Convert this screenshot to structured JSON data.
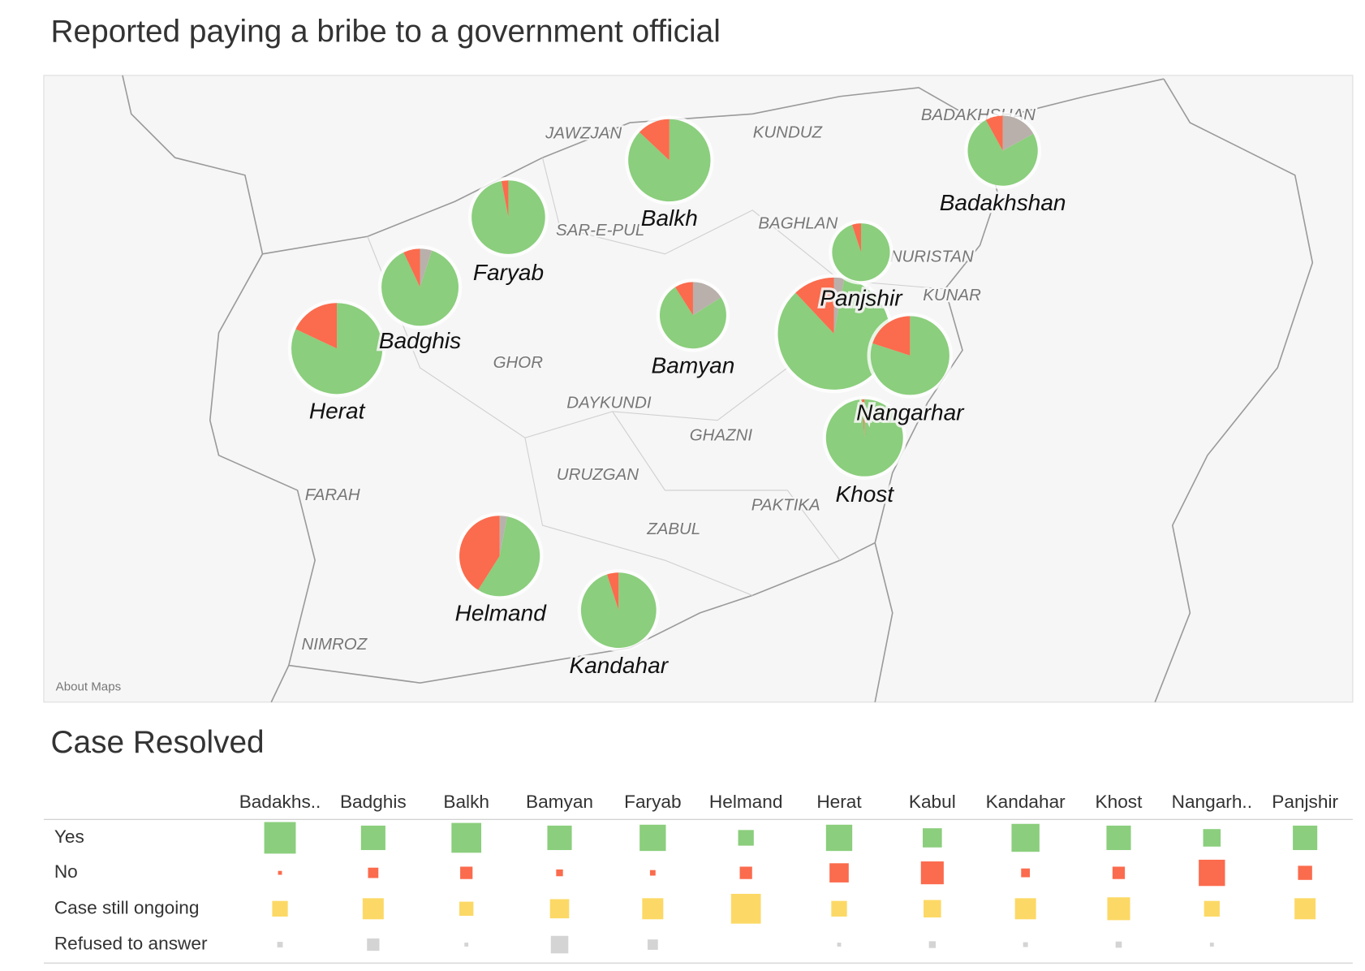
{
  "chart_data": [
    {
      "type": "pie-map",
      "title": "Reported paying a bribe to a government official",
      "categories": [
        "Badakhshan",
        "Balkh",
        "Faryab",
        "Badghis",
        "Herat",
        "Bamyan",
        "Panjshir",
        null,
        "Nangarhar",
        "Khost",
        "Helmand",
        "Kandahar"
      ],
      "series": [
        {
          "color": "#b9b0ab",
          "values": [
            17,
            0,
            0,
            5,
            0,
            16,
            0,
            3,
            0,
            0,
            3,
            0
          ]
        },
        {
          "color": "#8bce7d",
          "values": [
            75,
            87,
            97,
            88,
            82,
            75,
            95,
            85,
            80,
            99,
            56,
            95
          ]
        },
        {
          "color": "#fb6b4d",
          "values": [
            8,
            13,
            3,
            7,
            18,
            9,
            5,
            12,
            20,
            1,
            41,
            5
          ]
        }
      ],
      "annotations": [
        "JAWZJAN",
        "KUNDUZ",
        "BADAKHSHAN",
        "SAR-E-PUL",
        "BAGHLAN",
        "NURISTAN",
        "KUNAR",
        "GHOR",
        "DAYKUNDI",
        "GHAZNI",
        "URUZGAN",
        "FARAH",
        "PAKTIKA",
        "ZABUL",
        "NIMROZ",
        "About Maps"
      ]
    },
    {
      "type": "matrix",
      "title": "Case Resolved",
      "categories": [
        "Badakhs..",
        "Badghis",
        "Balkh",
        "Bamyan",
        "Faryab",
        "Helmand",
        "Herat",
        "Kabul",
        "Kandahar",
        "Khost",
        "Nangarh..",
        "Panjshir"
      ],
      "series": [
        {
          "name": "Yes",
          "color": "#8bce7d",
          "values": [
            130,
            78,
            116,
            78,
            90,
            32,
            90,
            48,
            102,
            78,
            40,
            78
          ]
        },
        {
          "name": "No",
          "color": "#fb6b4d",
          "values": [
            2,
            14,
            20,
            6,
            4,
            20,
            48,
            68,
            10,
            20,
            90,
            26
          ]
        },
        {
          "name": "Case still ongoing",
          "color": "#fcd966",
          "values": [
            32,
            58,
            26,
            48,
            58,
            116,
            32,
            40,
            58,
            68,
            32,
            58
          ]
        },
        {
          "name": "Refused to answer",
          "color": "#d4d4d4",
          "values": [
            4,
            20,
            2,
            40,
            14,
            null,
            2,
            6,
            3,
            5,
            2,
            null
          ]
        }
      ]
    }
  ]
}
